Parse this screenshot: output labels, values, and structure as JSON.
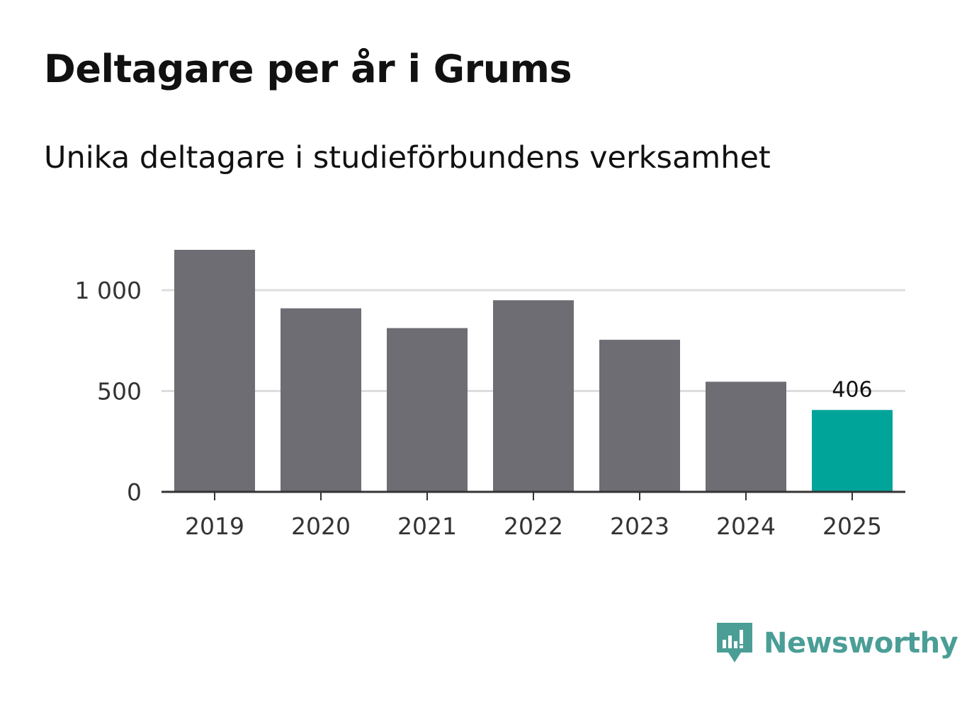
{
  "header": {
    "title": "Deltagare per år i Grums",
    "subtitle": "Unika deltagare i studieförbundens verksamhet"
  },
  "chart_data": {
    "type": "bar",
    "title": "Deltagare per år i Grums",
    "subtitle": "Unika deltagare i studieförbundens verksamhet",
    "categories": [
      "2019",
      "2020",
      "2021",
      "2022",
      "2023",
      "2024",
      "2025"
    ],
    "values": [
      1200,
      910,
      812,
      950,
      754,
      546,
      406
    ],
    "highlight_index": 6,
    "highlight_label": "406",
    "ylim": [
      0,
      1200
    ],
    "yticks": [
      0,
      500,
      1000
    ],
    "ytick_labels": [
      "0",
      "500",
      "1 000"
    ],
    "xlabel": "",
    "ylabel": "",
    "grid": true,
    "colors": {
      "bar": "#6e6d73",
      "highlight": "#00a499",
      "grid": "#dddddd",
      "axis": "#333333"
    }
  },
  "brand": {
    "name": "Newsworthy",
    "icon": "newsworthy-logo-icon",
    "color": "#4a9e96"
  }
}
